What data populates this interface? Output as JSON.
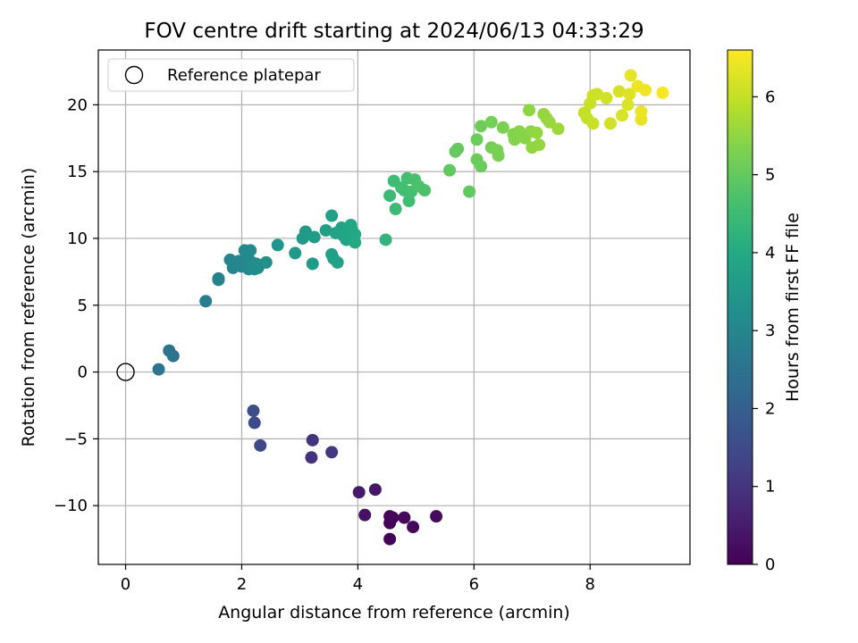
{
  "chart_data": {
    "type": "scatter",
    "title": "FOV centre drift starting at 2024/06/13 04:33:29",
    "xlabel": "Angular distance from reference (arcmin)",
    "ylabel": "Rotation from reference (arcmin)",
    "xlim": [
      -0.47,
      9.72
    ],
    "ylim": [
      -14.4,
      24.1
    ],
    "x_ticks": [
      "0",
      "2",
      "4",
      "6",
      "8"
    ],
    "y_ticks": [
      "−10",
      "−5",
      "0",
      "5",
      "10",
      "15",
      "20"
    ],
    "grid": true,
    "legend_position": "top-left",
    "legend": [
      {
        "label": "Reference platepar",
        "marker": "open-circle"
      }
    ],
    "reference_point": {
      "x": 0,
      "y": 0
    },
    "colorbar": {
      "label": "Hours from first FF file",
      "colormap": "viridis",
      "range": [
        0,
        6.6
      ],
      "ticks": [
        "0",
        "1",
        "2",
        "3",
        "4",
        "5",
        "6"
      ]
    },
    "points": [
      {
        "x": 4.55,
        "y": -12.5,
        "h": 0.05
      },
      {
        "x": 4.55,
        "y": -11.3,
        "h": 0.08
      },
      {
        "x": 4.6,
        "y": -10.9,
        "h": 0.1
      },
      {
        "x": 4.55,
        "y": -10.8,
        "h": 0.12
      },
      {
        "x": 4.8,
        "y": -10.9,
        "h": 0.14
      },
      {
        "x": 4.95,
        "y": -11.6,
        "h": 0.16
      },
      {
        "x": 5.35,
        "y": -10.8,
        "h": 0.18
      },
      {
        "x": 4.3,
        "y": -8.8,
        "h": 0.4
      },
      {
        "x": 4.02,
        "y": -9.0,
        "h": 0.45
      },
      {
        "x": 4.12,
        "y": -10.7,
        "h": 0.3
      },
      {
        "x": 3.22,
        "y": -5.1,
        "h": 1.0
      },
      {
        "x": 3.2,
        "y": -6.4,
        "h": 0.95
      },
      {
        "x": 3.55,
        "y": -6.0,
        "h": 1.1
      },
      {
        "x": 2.2,
        "y": -2.9,
        "h": 1.55
      },
      {
        "x": 2.22,
        "y": -3.8,
        "h": 1.5
      },
      {
        "x": 2.32,
        "y": -5.5,
        "h": 1.45
      },
      {
        "x": 0.57,
        "y": 0.2,
        "h": 2.55
      },
      {
        "x": 0.75,
        "y": 1.6,
        "h": 2.5
      },
      {
        "x": 0.82,
        "y": 1.2,
        "h": 2.52
      },
      {
        "x": 1.38,
        "y": 5.3,
        "h": 2.8
      },
      {
        "x": 1.6,
        "y": 7.0,
        "h": 2.85
      },
      {
        "x": 1.6,
        "y": 6.9,
        "h": 2.9
      },
      {
        "x": 1.8,
        "y": 8.4,
        "h": 2.95
      },
      {
        "x": 1.85,
        "y": 7.8,
        "h": 2.97
      },
      {
        "x": 1.95,
        "y": 8.3,
        "h": 3.0
      },
      {
        "x": 2.0,
        "y": 7.9,
        "h": 3.02
      },
      {
        "x": 2.05,
        "y": 9.1,
        "h": 3.05
      },
      {
        "x": 2.1,
        "y": 8.6,
        "h": 3.07
      },
      {
        "x": 2.12,
        "y": 7.7,
        "h": 3.1
      },
      {
        "x": 2.15,
        "y": 9.1,
        "h": 3.12
      },
      {
        "x": 2.18,
        "y": 8.2,
        "h": 3.15
      },
      {
        "x": 2.22,
        "y": 7.7,
        "h": 3.17
      },
      {
        "x": 2.25,
        "y": 8.1,
        "h": 3.2
      },
      {
        "x": 2.28,
        "y": 7.8,
        "h": 3.22
      },
      {
        "x": 2.42,
        "y": 8.2,
        "h": 3.25
      },
      {
        "x": 2.62,
        "y": 9.5,
        "h": 3.4
      },
      {
        "x": 2.92,
        "y": 8.9,
        "h": 3.5
      },
      {
        "x": 3.05,
        "y": 10.0,
        "h": 3.55
      },
      {
        "x": 3.1,
        "y": 10.5,
        "h": 3.6
      },
      {
        "x": 3.25,
        "y": 10.1,
        "h": 3.62
      },
      {
        "x": 3.22,
        "y": 8.1,
        "h": 3.58
      },
      {
        "x": 3.45,
        "y": 10.6,
        "h": 3.68
      },
      {
        "x": 3.55,
        "y": 8.8,
        "h": 3.7
      },
      {
        "x": 3.58,
        "y": 8.5,
        "h": 3.72
      },
      {
        "x": 3.55,
        "y": 11.7,
        "h": 3.75
      },
      {
        "x": 3.62,
        "y": 10.4,
        "h": 3.78
      },
      {
        "x": 3.65,
        "y": 8.2,
        "h": 3.76
      },
      {
        "x": 3.72,
        "y": 10.8,
        "h": 3.82
      },
      {
        "x": 3.75,
        "y": 10.2,
        "h": 3.85
      },
      {
        "x": 3.8,
        "y": 9.9,
        "h": 3.88
      },
      {
        "x": 3.88,
        "y": 11.0,
        "h": 3.9
      },
      {
        "x": 3.9,
        "y": 10.6,
        "h": 3.92
      },
      {
        "x": 3.92,
        "y": 9.9,
        "h": 3.94
      },
      {
        "x": 3.95,
        "y": 10.3,
        "h": 3.96
      },
      {
        "x": 3.95,
        "y": 9.7,
        "h": 3.98
      },
      {
        "x": 4.48,
        "y": 9.9,
        "h": 4.3
      },
      {
        "x": 4.55,
        "y": 13.2,
        "h": 4.45
      },
      {
        "x": 4.62,
        "y": 14.3,
        "h": 4.5
      },
      {
        "x": 4.65,
        "y": 12.2,
        "h": 4.48
      },
      {
        "x": 4.75,
        "y": 13.8,
        "h": 4.55
      },
      {
        "x": 4.8,
        "y": 13.6,
        "h": 4.58
      },
      {
        "x": 4.85,
        "y": 14.5,
        "h": 4.6
      },
      {
        "x": 4.88,
        "y": 12.8,
        "h": 4.57
      },
      {
        "x": 4.92,
        "y": 13.5,
        "h": 4.62
      },
      {
        "x": 4.98,
        "y": 14.4,
        "h": 4.65
      },
      {
        "x": 5.05,
        "y": 13.9,
        "h": 4.68
      },
      {
        "x": 5.15,
        "y": 13.6,
        "h": 4.7
      },
      {
        "x": 5.58,
        "y": 15.1,
        "h": 4.95
      },
      {
        "x": 5.68,
        "y": 16.5,
        "h": 5.0
      },
      {
        "x": 5.72,
        "y": 16.7,
        "h": 5.02
      },
      {
        "x": 5.92,
        "y": 13.5,
        "h": 4.98
      },
      {
        "x": 6.05,
        "y": 17.4,
        "h": 5.12
      },
      {
        "x": 6.05,
        "y": 15.9,
        "h": 5.1
      },
      {
        "x": 6.12,
        "y": 18.4,
        "h": 5.15
      },
      {
        "x": 6.12,
        "y": 15.4,
        "h": 5.08
      },
      {
        "x": 6.3,
        "y": 18.7,
        "h": 5.2
      },
      {
        "x": 6.3,
        "y": 16.8,
        "h": 5.22
      },
      {
        "x": 6.4,
        "y": 16.6,
        "h": 5.24
      },
      {
        "x": 6.42,
        "y": 16.2,
        "h": 5.25
      },
      {
        "x": 6.5,
        "y": 18.3,
        "h": 5.28
      },
      {
        "x": 6.68,
        "y": 17.8,
        "h": 5.35
      },
      {
        "x": 6.7,
        "y": 17.4,
        "h": 5.37
      },
      {
        "x": 6.78,
        "y": 18.0,
        "h": 5.4
      },
      {
        "x": 6.88,
        "y": 17.5,
        "h": 5.42
      },
      {
        "x": 6.95,
        "y": 19.6,
        "h": 5.48
      },
      {
        "x": 6.98,
        "y": 18.0,
        "h": 5.46
      },
      {
        "x": 7.0,
        "y": 16.8,
        "h": 5.5
      },
      {
        "x": 7.08,
        "y": 17.9,
        "h": 5.52
      },
      {
        "x": 7.12,
        "y": 17.0,
        "h": 5.53
      },
      {
        "x": 7.2,
        "y": 19.3,
        "h": 5.55
      },
      {
        "x": 7.25,
        "y": 19.0,
        "h": 5.57
      },
      {
        "x": 7.3,
        "y": 18.7,
        "h": 5.58
      },
      {
        "x": 7.45,
        "y": 18.2,
        "h": 5.62
      },
      {
        "x": 7.9,
        "y": 19.4,
        "h": 6.0
      },
      {
        "x": 7.95,
        "y": 19.0,
        "h": 6.02
      },
      {
        "x": 8.0,
        "y": 20.1,
        "h": 6.05
      },
      {
        "x": 8.05,
        "y": 20.7,
        "h": 6.07
      },
      {
        "x": 8.05,
        "y": 18.6,
        "h": 6.06
      },
      {
        "x": 8.12,
        "y": 20.8,
        "h": 6.1
      },
      {
        "x": 8.28,
        "y": 20.5,
        "h": 6.15
      },
      {
        "x": 8.35,
        "y": 18.6,
        "h": 6.14
      },
      {
        "x": 8.5,
        "y": 21.0,
        "h": 6.2
      },
      {
        "x": 8.55,
        "y": 19.2,
        "h": 6.22
      },
      {
        "x": 8.65,
        "y": 20.0,
        "h": 6.25
      },
      {
        "x": 8.68,
        "y": 20.8,
        "h": 6.3
      },
      {
        "x": 8.7,
        "y": 22.2,
        "h": 6.35
      },
      {
        "x": 8.82,
        "y": 21.4,
        "h": 6.4
      },
      {
        "x": 8.88,
        "y": 18.9,
        "h": 6.38
      },
      {
        "x": 8.88,
        "y": 19.5,
        "h": 6.42
      },
      {
        "x": 8.95,
        "y": 21.1,
        "h": 6.45
      },
      {
        "x": 9.25,
        "y": 20.9,
        "h": 6.55
      }
    ]
  }
}
